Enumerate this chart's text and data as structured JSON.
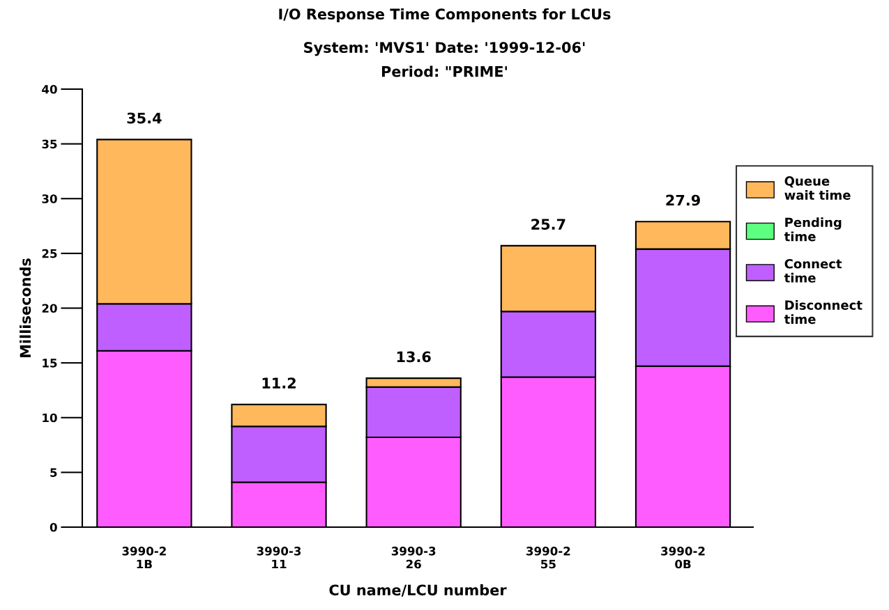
{
  "chart_data": {
    "type": "bar",
    "stacked": true,
    "title": "I/O Response Time Components for LCUs",
    "subtitle": "System: 'MVS1' Date: '1999-12-06'\nPeriod: \"PRIME'",
    "xlabel": "CU name/LCU number",
    "ylabel": "Milliseconds",
    "categories": [
      "3990-2\n1B",
      "3990-3\n11",
      "3990-3\n26",
      "3990-2\n55",
      "3990-2\n0B"
    ],
    "series": [
      {
        "name": "Disconnect\ntime",
        "color": "#ff5cff",
        "values": [
          16.1,
          4.1,
          8.2,
          13.7,
          14.7
        ]
      },
      {
        "name": "Connect\ntime",
        "color": "#bf5fff",
        "values": [
          4.3,
          5.1,
          4.6,
          6.0,
          10.7
        ]
      },
      {
        "name": "Pending\ntime",
        "color": "#5cff80",
        "values": [
          0,
          0,
          0,
          0,
          0
        ]
      },
      {
        "name": "Queue\nwait time",
        "color": "#ffb85c",
        "values": [
          15.0,
          2.0,
          0.8,
          6.0,
          2.5
        ]
      }
    ],
    "totals": [
      "35.4",
      "11.2",
      "13.6",
      "25.7",
      "27.9"
    ],
    "ylim": [
      0,
      40
    ],
    "yticks": [
      0,
      5,
      10,
      15,
      20,
      25,
      30,
      35,
      40
    ],
    "grid": false,
    "legend": "right"
  }
}
